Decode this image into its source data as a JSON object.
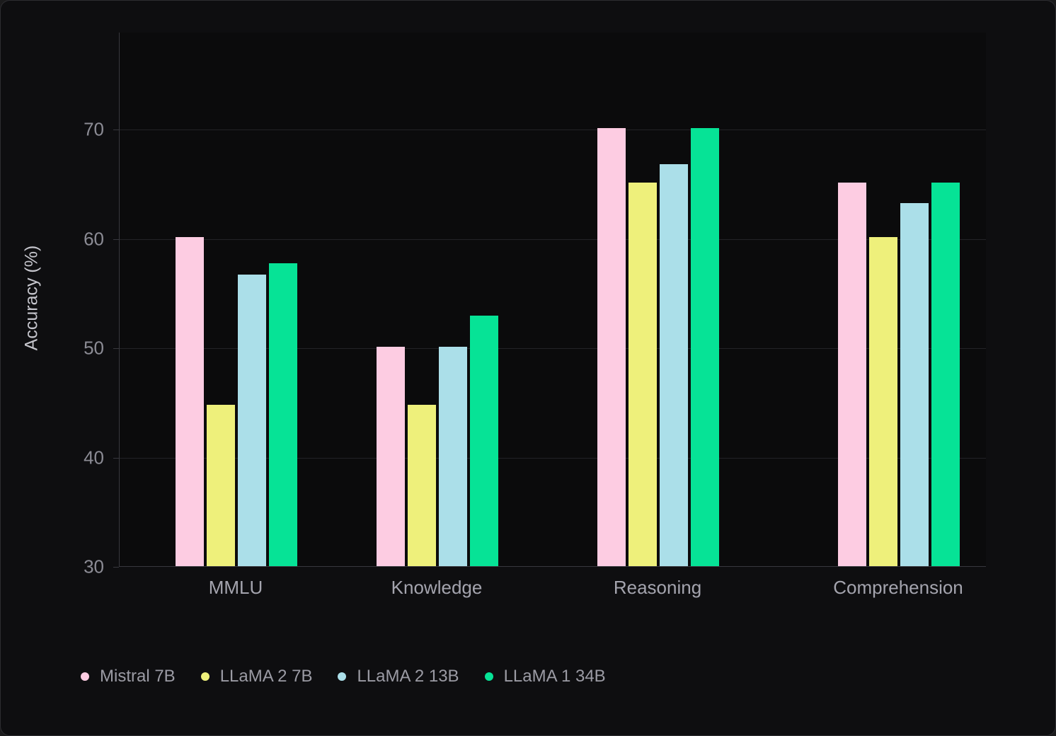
{
  "chart_data": {
    "type": "bar",
    "title": "",
    "xlabel": "",
    "ylabel": "Accuracy (%)",
    "categories": [
      "MMLU",
      "Knowledge",
      "Reasoning",
      "Comprehension"
    ],
    "series": [
      {
        "name": "Mistral 7B",
        "color": "#fdcce2",
        "values": [
          60.1,
          50.1,
          70.1,
          65.1
        ]
      },
      {
        "name": "LLaMA 2 7B",
        "color": "#eef07b",
        "values": [
          44.8,
          44.8,
          65.1,
          60.1
        ]
      },
      {
        "name": "LLaMA 2 13B",
        "color": "#abdfe9",
        "values": [
          56.7,
          50.1,
          66.8,
          63.2
        ]
      },
      {
        "name": "LLaMA 1 34B",
        "color": "#06e396",
        "values": [
          57.7,
          52.9,
          70.1,
          65.1
        ]
      }
    ],
    "yticks": [
      30,
      40,
      50,
      60,
      70
    ],
    "ylim": [
      30,
      78.9
    ],
    "grid": "horizontal-only",
    "legend_position": "bottom-left",
    "theme": {
      "card_background": "#0e0e10",
      "plot_background": "#0b0b0c",
      "gridline_color": "#232327",
      "axis_spine_color": "#38383e",
      "tick_label_color": "#8c8c95",
      "category_label_color": "#a4a4ae",
      "axis_title_color": "#c5c5cc",
      "legend_text_color": "#9b9ba4"
    }
  }
}
